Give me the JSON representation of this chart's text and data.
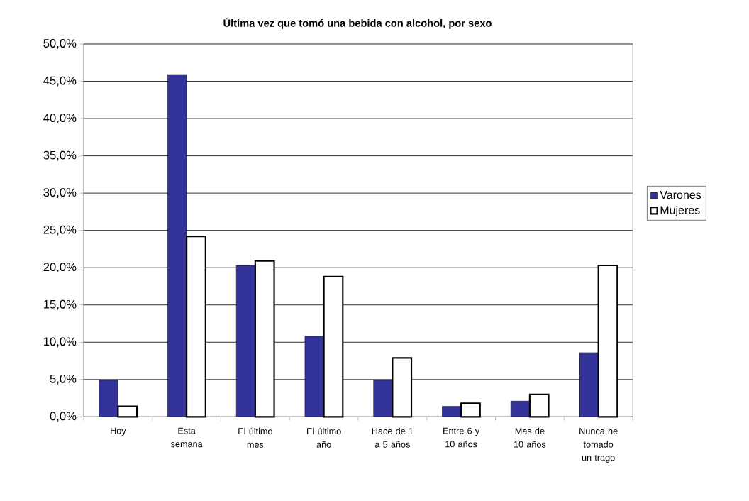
{
  "chart_data": {
    "type": "bar",
    "title": "Última vez que tomó una bebida con alcohol, por sexo",
    "categories": [
      "Hoy",
      "Esta semana",
      "El último mes",
      "El último año",
      "Hace de 1 a 5 años",
      "Entre 6 y 10 años",
      "Mas de 10 años",
      "Nunca he tomado un trago"
    ],
    "series": [
      {
        "name": "Varones",
        "color": "#333399",
        "values": [
          4.9,
          45.9,
          20.3,
          10.8,
          4.9,
          1.4,
          2.1,
          8.6
        ]
      },
      {
        "name": "Mujeres",
        "color": "#ffffff",
        "values": [
          1.4,
          24.2,
          20.9,
          18.8,
          7.9,
          1.8,
          3.0,
          20.3
        ]
      }
    ],
    "ylim": [
      0,
      50
    ],
    "yticks": [
      {
        "value": 0,
        "label": "0,0%"
      },
      {
        "value": 5,
        "label": "5,0%"
      },
      {
        "value": 10,
        "label": "10,0%"
      },
      {
        "value": 15,
        "label": "15,0%"
      },
      {
        "value": 20,
        "label": "20,0%"
      },
      {
        "value": 25,
        "label": "25,0%"
      },
      {
        "value": 30,
        "label": "30,0%"
      },
      {
        "value": 35,
        "label": "35,0%"
      },
      {
        "value": 40,
        "label": "40,0%"
      },
      {
        "value": 45,
        "label": "45,0%"
      },
      {
        "value": 50,
        "label": "50,0%"
      }
    ],
    "grid": "y",
    "legend": "right"
  }
}
